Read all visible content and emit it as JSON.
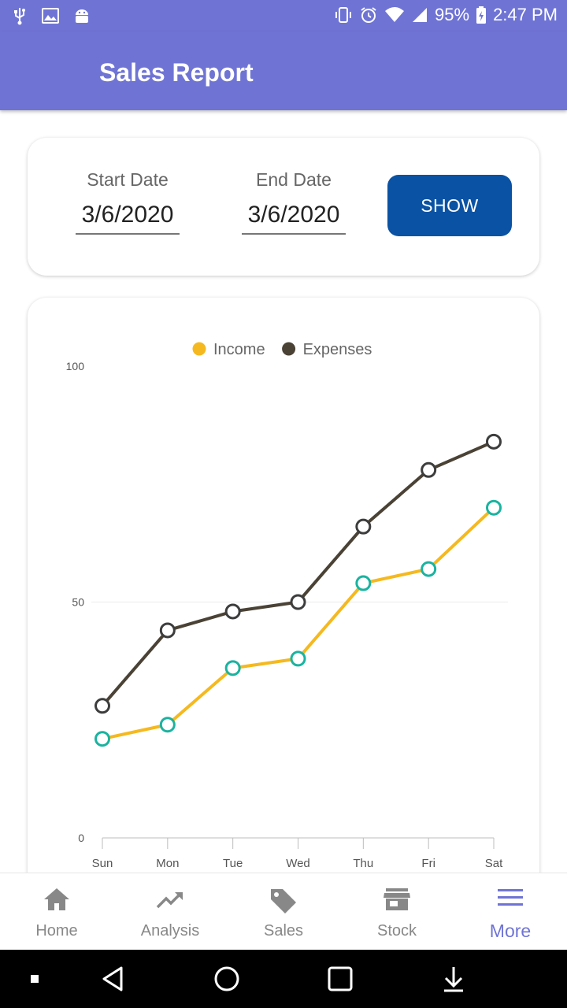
{
  "status_bar": {
    "battery": "95%",
    "time": "2:47 PM",
    "icons": [
      "usb-icon",
      "image-icon",
      "android-icon",
      "vibrate-icon",
      "alarm-icon",
      "wifi-icon",
      "signal-icon",
      "battery-icon"
    ]
  },
  "app_bar": {
    "title": "Sales Report"
  },
  "date_filter": {
    "start_label": "Start Date",
    "start_value": "3/6/2020",
    "end_label": "End Date",
    "end_value": "3/6/2020",
    "show_label": "SHOW"
  },
  "chart_data": {
    "type": "line",
    "categories": [
      "Sun",
      "Mon",
      "Tue",
      "Wed",
      "Thu",
      "Fri",
      "Sat"
    ],
    "series": [
      {
        "name": "Income",
        "values": [
          21,
          24,
          36,
          38,
          54,
          57,
          70
        ],
        "color": "#f5b91f",
        "marker_color": "#1ab3a0"
      },
      {
        "name": "Expenses",
        "values": [
          28,
          44,
          48,
          50,
          66,
          78,
          84
        ],
        "color": "#4a4235",
        "marker_color": "#3d3d3d"
      }
    ],
    "yticks": [
      0,
      50,
      100
    ],
    "ylim": [
      0,
      100
    ],
    "grid": true,
    "legend": "top-center"
  },
  "bottom_nav": {
    "items": [
      {
        "label": "Home",
        "icon": "home-icon"
      },
      {
        "label": "Analysis",
        "icon": "trend-icon"
      },
      {
        "label": "Sales",
        "icon": "tag-icon"
      },
      {
        "label": "Stock",
        "icon": "store-icon"
      },
      {
        "label": "More",
        "icon": "menu-icon"
      }
    ],
    "active": "More"
  },
  "system_nav": {
    "icons": [
      "recent-dot-icon",
      "back-icon",
      "home-circle-icon",
      "overview-icon",
      "download-icon"
    ]
  }
}
